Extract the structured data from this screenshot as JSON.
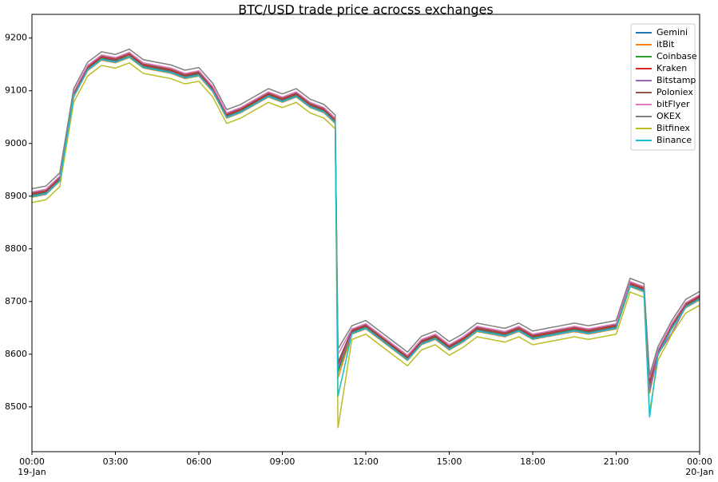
{
  "chart_data": {
    "type": "line",
    "title": "BTC/USD trade price acrocss exchanges",
    "x": [
      0,
      0.5,
      1,
      1.5,
      2,
      2.5,
      3,
      3.5,
      4,
      4.5,
      5,
      5.5,
      6,
      6.5,
      7,
      7.5,
      8,
      8.5,
      9,
      9.5,
      10,
      10.5,
      10.9,
      11,
      11.5,
      12,
      12.5,
      13,
      13.5,
      14,
      14.5,
      15,
      15.5,
      16,
      16.5,
      17,
      17.5,
      18,
      18.5,
      19,
      19.5,
      20,
      20.5,
      21,
      21.5,
      22,
      22.2,
      22.5,
      23,
      23.5,
      24
    ],
    "xlim": [
      0,
      24
    ],
    "xticks": [
      {
        "value": 0,
        "label": "00:00",
        "date": "19-Jan"
      },
      {
        "value": 3,
        "label": "03:00"
      },
      {
        "value": 6,
        "label": "06:00"
      },
      {
        "value": 9,
        "label": "09:00"
      },
      {
        "value": 12,
        "label": "12:00"
      },
      {
        "value": 15,
        "label": "15:00"
      },
      {
        "value": 18,
        "label": "18:00"
      },
      {
        "value": 21,
        "label": "21:00"
      },
      {
        "value": 24,
        "label": "00:00",
        "date": "20-Jan"
      }
    ],
    "ylim": [
      8415,
      9245
    ],
    "yticks": [
      8500,
      8600,
      8700,
      8800,
      8900,
      9000,
      9100,
      9200
    ],
    "legend": "upper right",
    "series": [
      {
        "name": "Gemini",
        "color": "#1f77b4",
        "values": [
          8902,
          8907,
          8932,
          9093,
          9142,
          9162,
          9158,
          9166,
          9147,
          9142,
          9137,
          9127,
          9132,
          9102,
          9052,
          9062,
          9077,
          9092,
          9082,
          9092,
          9072,
          9062,
          9042,
          8570,
          8642,
          8652,
          8632,
          8612,
          8592,
          8622,
          8632,
          8612,
          8627,
          8647,
          8642,
          8637,
          8647,
          8632,
          8637,
          8642,
          8647,
          8642,
          8647,
          8652,
          8732,
          8722,
          8540,
          8602,
          8652,
          8692,
          8707
        ]
      },
      {
        "name": "itBit",
        "color": "#ff7f0e",
        "values": [
          8898,
          8903,
          8928,
          9088,
          9138,
          9158,
          9153,
          9163,
          9143,
          9138,
          9133,
          9123,
          9128,
          9098,
          9048,
          9058,
          9073,
          9088,
          9078,
          9088,
          9068,
          9058,
          9038,
          8555,
          8638,
          8648,
          8628,
          8608,
          8588,
          8618,
          8628,
          8608,
          8623,
          8643,
          8638,
          8633,
          8643,
          8628,
          8633,
          8638,
          8643,
          8638,
          8643,
          8648,
          8728,
          8718,
          8525,
          8598,
          8648,
          8688,
          8703
        ]
      },
      {
        "name": "Coinbase",
        "color": "#2ca02c",
        "values": [
          8901,
          8906,
          8931,
          9091,
          9141,
          9161,
          9156,
          9166,
          9146,
          9141,
          9136,
          9126,
          9131,
          9101,
          9051,
          9061,
          9076,
          9091,
          9081,
          9091,
          9071,
          9061,
          9041,
          8565,
          8641,
          8651,
          8631,
          8611,
          8591,
          8621,
          8631,
          8611,
          8626,
          8646,
          8641,
          8636,
          8646,
          8631,
          8636,
          8641,
          8646,
          8641,
          8646,
          8651,
          8731,
          8721,
          8535,
          8601,
          8651,
          8691,
          8706
        ]
      },
      {
        "name": "Kraken",
        "color": "#d62728",
        "values": [
          8904,
          8909,
          8934,
          9094,
          9144,
          9164,
          9159,
          9169,
          9149,
          9144,
          9139,
          9129,
          9134,
          9104,
          9054,
          9064,
          9079,
          9094,
          9084,
          9094,
          9074,
          9064,
          9044,
          8580,
          8644,
          8654,
          8634,
          8614,
          8594,
          8624,
          8634,
          8614,
          8629,
          8649,
          8644,
          8639,
          8649,
          8634,
          8639,
          8644,
          8649,
          8644,
          8649,
          8654,
          8734,
          8724,
          8545,
          8604,
          8654,
          8694,
          8709
        ]
      },
      {
        "name": "Bitstamp",
        "color": "#9467bd",
        "values": [
          8900,
          8905,
          8930,
          9090,
          9140,
          9160,
          9155,
          9165,
          9145,
          9140,
          9135,
          9125,
          9130,
          9100,
          9050,
          9060,
          9075,
          9090,
          9080,
          9090,
          9070,
          9060,
          9040,
          8575,
          8640,
          8650,
          8630,
          8610,
          8590,
          8620,
          8630,
          8610,
          8625,
          8645,
          8640,
          8635,
          8645,
          8630,
          8635,
          8640,
          8645,
          8640,
          8645,
          8650,
          8730,
          8720,
          8530,
          8600,
          8640,
          8690,
          8705
        ]
      },
      {
        "name": "Poloniex",
        "color": "#8c564b",
        "values": [
          8906,
          8911,
          8936,
          9096,
          9146,
          9166,
          9161,
          9171,
          9151,
          9146,
          9141,
          9131,
          9136,
          9106,
          9056,
          9066,
          9081,
          9096,
          9086,
          9096,
          9076,
          9066,
          9046,
          8585,
          8646,
          8656,
          8636,
          8616,
          8596,
          8626,
          8636,
          8616,
          8631,
          8651,
          8646,
          8641,
          8651,
          8636,
          8641,
          8646,
          8651,
          8646,
          8651,
          8656,
          8736,
          8726,
          8550,
          8606,
          8656,
          8696,
          8711
        ]
      },
      {
        "name": "bitFlyer",
        "color": "#e377c2",
        "values": [
          8908,
          8913,
          8938,
          9098,
          9148,
          9168,
          9163,
          9173,
          9153,
          9148,
          9143,
          9133,
          9138,
          9108,
          9058,
          9068,
          9083,
          9098,
          9088,
          9098,
          9078,
          9068,
          9048,
          8600,
          8648,
          8658,
          8638,
          8618,
          8598,
          8628,
          8638,
          8618,
          8633,
          8653,
          8648,
          8643,
          8653,
          8638,
          8643,
          8648,
          8653,
          8648,
          8653,
          8658,
          8738,
          8728,
          8555,
          8608,
          8658,
          8698,
          8713
        ]
      },
      {
        "name": "OKEX",
        "color": "#7f7f7f",
        "values": [
          8914,
          8919,
          8944,
          9104,
          9154,
          9174,
          9169,
          9179,
          9159,
          9154,
          9149,
          9139,
          9144,
          9114,
          9064,
          9074,
          9089,
          9104,
          9094,
          9104,
          9084,
          9074,
          9054,
          8610,
          8654,
          8664,
          8644,
          8624,
          8604,
          8634,
          8644,
          8624,
          8639,
          8659,
          8654,
          8649,
          8659,
          8644,
          8649,
          8654,
          8659,
          8654,
          8659,
          8664,
          8744,
          8734,
          8560,
          8614,
          8664,
          8704,
          8719
        ]
      },
      {
        "name": "Bitfinex",
        "color": "#bcbd22",
        "values": [
          8888,
          8893,
          8918,
          9078,
          9128,
          9148,
          9143,
          9153,
          9133,
          9128,
          9123,
          9113,
          9118,
          9088,
          9038,
          9048,
          9063,
          9078,
          9068,
          9078,
          9058,
          9048,
          9028,
          8460,
          8628,
          8638,
          8618,
          8598,
          8578,
          8608,
          8618,
          8598,
          8613,
          8633,
          8628,
          8623,
          8633,
          8618,
          8623,
          8628,
          8633,
          8628,
          8633,
          8638,
          8718,
          8708,
          8490,
          8588,
          8638,
          8678,
          8693
        ]
      },
      {
        "name": "Binance",
        "color": "#17becf",
        "values": [
          8899,
          8904,
          8929,
          9089,
          9139,
          9159,
          9154,
          9164,
          9144,
          9139,
          9134,
          9124,
          9129,
          9099,
          9049,
          9059,
          9074,
          9089,
          9079,
          9089,
          9069,
          9059,
          9039,
          8520,
          8639,
          8649,
          8629,
          8609,
          8589,
          8619,
          8629,
          8609,
          8624,
          8644,
          8639,
          8634,
          8644,
          8629,
          8634,
          8639,
          8644,
          8639,
          8644,
          8649,
          8729,
          8719,
          8480,
          8599,
          8649,
          8689,
          8704
        ]
      }
    ]
  }
}
